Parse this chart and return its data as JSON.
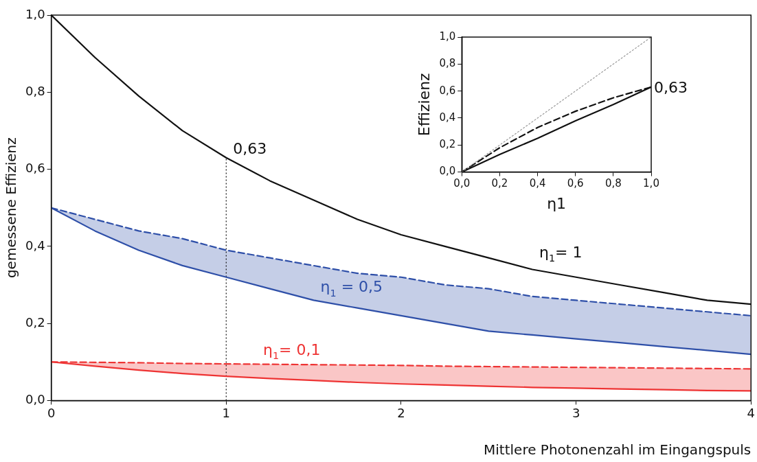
{
  "chart_data": [
    {
      "type": "line",
      "xlabel": "Mittlere Photonenzahl im Eingangspuls",
      "ylabel": "gemessene Effizienz",
      "x": [
        0,
        0.25,
        0.5,
        0.75,
        1,
        1.25,
        1.5,
        1.75,
        2,
        2.25,
        2.5,
        2.75,
        3,
        3.25,
        3.5,
        3.75,
        4
      ],
      "xlim": [
        0,
        4
      ],
      "xticks": [
        0,
        1,
        2,
        3,
        4
      ],
      "ylim": [
        0,
        1
      ],
      "yticks": [
        {
          "value": 0,
          "label": "0,0"
        },
        {
          "value": 0.2,
          "label": "0,2"
        },
        {
          "value": 0.4,
          "label": "0,4"
        },
        {
          "value": 0.6,
          "label": "0,6"
        },
        {
          "value": 0.8,
          "label": "0,8"
        },
        {
          "value": 1,
          "label": "1,0"
        }
      ],
      "grid": false,
      "legend": false,
      "marker": "none",
      "series": [
        {
          "name": "η$_{1}$= 1",
          "color": "#111111",
          "line_style": "solid",
          "values": [
            1,
            0.89,
            0.79,
            0.7,
            0.63,
            0.57,
            0.52,
            0.47,
            0.43,
            0.4,
            0.37,
            0.34,
            0.32,
            0.3,
            0.28,
            0.26,
            0.25
          ]
        },
        {
          "color": "#2e4fa8",
          "line_style": "solid",
          "values": [
            0.5,
            0.44,
            0.39,
            0.35,
            0.32,
            0.29,
            0.26,
            0.24,
            0.22,
            0.2,
            0.18,
            0.17,
            0.16,
            0.15,
            0.14,
            0.13,
            0.12
          ]
        },
        {
          "name": "η$_{1}$ = 0,5",
          "color": "#2e4fa8",
          "line_style": "dashed",
          "values": [
            0.5,
            0.47,
            0.44,
            0.42,
            0.39,
            0.37,
            0.35,
            0.33,
            0.32,
            0.3,
            0.29,
            0.27,
            0.26,
            0.25,
            0.24,
            0.23,
            0.22
          ],
          "lower": [
            0.5,
            0.44,
            0.39,
            0.35,
            0.32,
            0.29,
            0.26,
            0.24,
            0.22,
            0.2,
            0.18,
            0.17,
            0.16,
            0.15,
            0.14,
            0.13,
            0.12
          ],
          "upper": [
            0.5,
            0.47,
            0.44,
            0.42,
            0.39,
            0.37,
            0.35,
            0.33,
            0.32,
            0.3,
            0.29,
            0.27,
            0.26,
            0.25,
            0.24,
            0.23,
            0.22
          ]
        },
        {
          "color": "#ee3333",
          "line_style": "solid",
          "values": [
            0.1,
            0.089,
            0.079,
            0.07,
            0.063,
            0.057,
            0.052,
            0.047,
            0.043,
            0.04,
            0.037,
            0.034,
            0.032,
            0.03,
            0.028,
            0.026,
            0.025
          ]
        },
        {
          "name": "η$_{1}$= 0,1",
          "color": "#ee3333",
          "line_style": "dashed",
          "values": [
            0.1,
            0.099,
            0.098,
            0.096,
            0.095,
            0.094,
            0.093,
            0.092,
            0.091,
            0.089,
            0.088,
            0.087,
            0.086,
            0.085,
            0.084,
            0.083,
            0.082
          ],
          "lower": [
            0.1,
            0.089,
            0.079,
            0.07,
            0.063,
            0.057,
            0.052,
            0.047,
            0.043,
            0.04,
            0.037,
            0.034,
            0.032,
            0.03,
            0.028,
            0.026,
            0.025
          ],
          "upper": [
            0.1,
            0.099,
            0.098,
            0.096,
            0.095,
            0.094,
            0.093,
            0.092,
            0.091,
            0.089,
            0.088,
            0.087,
            0.086,
            0.085,
            0.084,
            0.083,
            0.082
          ]
        }
      ],
      "ref_lines": [
        {
          "axis": "x",
          "value": 1,
          "color": "#111111",
          "line_style": "dotted"
        }
      ],
      "annotations": [
        {
          "text": "0,63",
          "x": 1,
          "y": 0.63
        }
      ]
    },
    {
      "type": "line",
      "xlabel": "η1",
      "ylabel": "Effizienz",
      "x": [
        0,
        0.2,
        0.4,
        0.6,
        0.8,
        1
      ],
      "xlim": [
        0,
        1
      ],
      "xticks": [
        {
          "value": 0,
          "label": "0,0"
        },
        {
          "value": 0.2,
          "label": "0,2"
        },
        {
          "value": 0.4,
          "label": "0,4"
        },
        {
          "value": 0.6,
          "label": "0,6"
        },
        {
          "value": 0.8,
          "label": "0,8"
        },
        {
          "value": 1,
          "label": "1,0"
        }
      ],
      "ylim": [
        0,
        1
      ],
      "yticks": [
        {
          "value": 0,
          "label": "0,0"
        },
        {
          "value": 0.2,
          "label": "0,2"
        },
        {
          "value": 0.4,
          "label": "0,4"
        },
        {
          "value": 0.6,
          "label": "0,6"
        },
        {
          "value": 0.8,
          "label": "0,8"
        },
        {
          "value": 1,
          "label": "1,0"
        }
      ],
      "grid": false,
      "legend": false,
      "marker": "none",
      "series": [
        {
          "color": "#999999",
          "line_style": "dotted",
          "values": [
            0,
            0.2,
            0.4,
            0.6,
            0.8,
            1
          ]
        },
        {
          "color": "#111111",
          "line_style": "dashed",
          "values": [
            0,
            0.18,
            0.33,
            0.45,
            0.55,
            0.63
          ]
        },
        {
          "color": "#111111",
          "line_style": "solid",
          "values": [
            0,
            0.13,
            0.25,
            0.38,
            0.5,
            0.63
          ]
        }
      ],
      "annotations": [
        {
          "text": "0,63",
          "x": 1,
          "y": 0.63
        }
      ]
    }
  ]
}
